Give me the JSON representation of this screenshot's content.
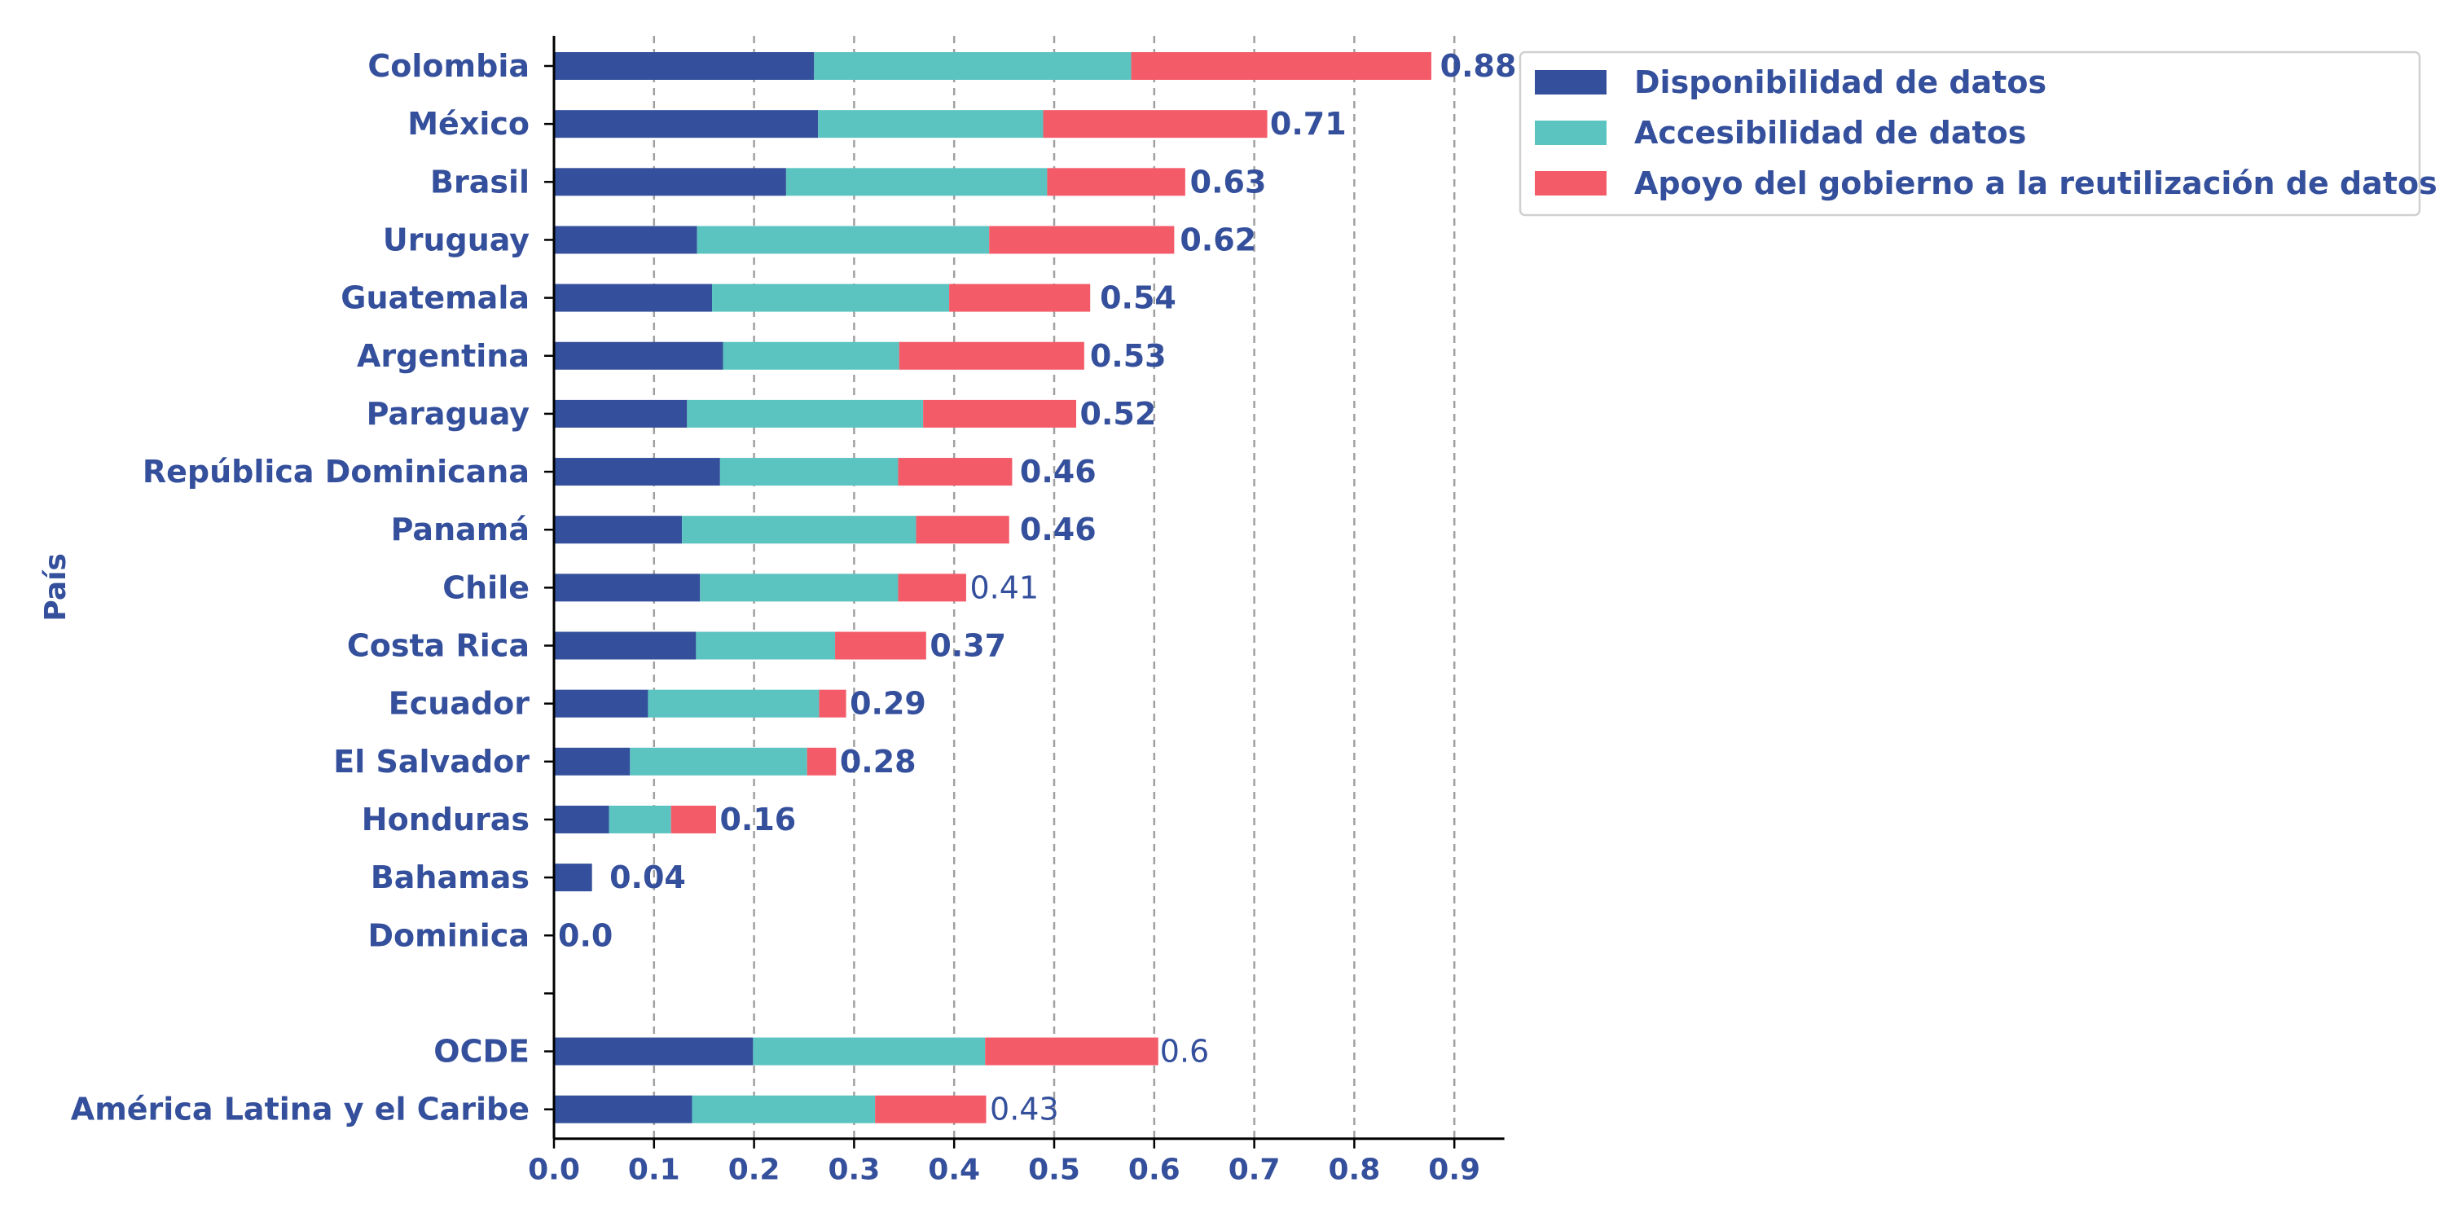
{
  "chart_data": {
    "type": "bar",
    "orientation": "horizontal",
    "stacked": true,
    "ylabel": "País",
    "xlabel": "",
    "xlim": [
      0,
      0.95
    ],
    "xticks": [
      "0.0",
      "0.1",
      "0.2",
      "0.3",
      "0.4",
      "0.5",
      "0.6",
      "0.7",
      "0.8",
      "0.9"
    ],
    "grid": "vertical dashed",
    "legend_position": "top-right",
    "categories": [
      "Colombia",
      "México",
      "Brasil",
      "Uruguay",
      "Guatemala",
      "Argentina",
      "Paraguay",
      "República Dominicana",
      "Panamá",
      "Chile",
      "Costa Rica",
      "Ecuador",
      "El Salvador",
      "Honduras",
      "Bahamas",
      "Dominica",
      "",
      "OCDE",
      "América Latina y el Caribe"
    ],
    "series": [
      {
        "name": "Disponibilidad de datos",
        "color": "#344f9b",
        "values": [
          0.26,
          0.264,
          0.232,
          0.143,
          0.158,
          0.169,
          0.133,
          0.166,
          0.128,
          0.146,
          0.142,
          0.094,
          0.076,
          0.055,
          0.038,
          0.0,
          null,
          0.199,
          0.138
        ]
      },
      {
        "name": "Accesibilidad de datos",
        "color": "#5bc4c0",
        "values": [
          0.317,
          0.225,
          0.261,
          0.292,
          0.237,
          0.176,
          0.236,
          0.178,
          0.234,
          0.198,
          0.139,
          0.171,
          0.177,
          0.062,
          0.0,
          0.0,
          null,
          0.232,
          0.183
        ]
      },
      {
        "name": "Apoyo del gobierno a la reutilización de datos",
        "color": "#f45b69",
        "values": [
          0.3,
          0.224,
          0.138,
          0.185,
          0.141,
          0.185,
          0.153,
          0.114,
          0.093,
          0.068,
          0.091,
          0.027,
          0.029,
          0.045,
          0.0,
          0.0,
          null,
          0.173,
          0.111
        ]
      }
    ],
    "totals": [
      "0.88",
      "0.71",
      "0.63",
      "0.62",
      "0.54",
      "0.53",
      "0.52",
      "0.46",
      "0.46",
      "0.41",
      "0.37",
      "0.29",
      "0.28",
      "0.16",
      "0.04",
      "0.0",
      "",
      "0.6",
      "0.43"
    ],
    "total_values": [
      0.88,
      0.71,
      0.63,
      0.62,
      0.54,
      0.53,
      0.52,
      0.46,
      0.46,
      0.41,
      0.37,
      0.29,
      0.28,
      0.16,
      0.04,
      0.0,
      null,
      0.6,
      0.43
    ],
    "total_bold": [
      true,
      true,
      true,
      true,
      true,
      true,
      true,
      true,
      true,
      false,
      true,
      true,
      true,
      true,
      true,
      true,
      false,
      false,
      false
    ]
  }
}
